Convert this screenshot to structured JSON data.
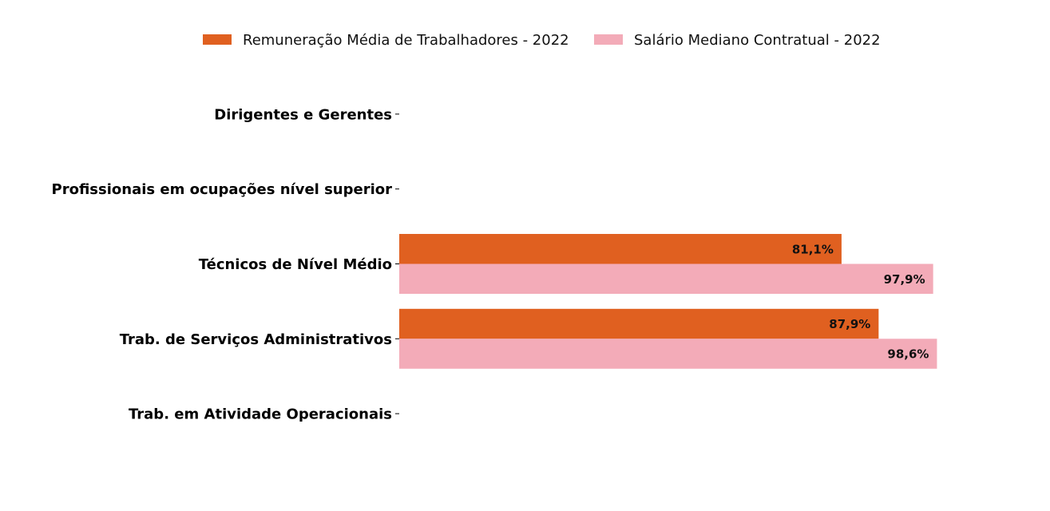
{
  "chart_data": {
    "type": "bar",
    "orientation": "horizontal",
    "categories": [
      "Dirigentes e Gerentes",
      "Profissionais em ocupações nível superior",
      "Técnicos de Nível Médio",
      "Trab. de Serviços Administrativos",
      "Trab. em Atividade Operacionais"
    ],
    "series": [
      {
        "name": "Remuneração Média de Trabalhadores - 2022",
        "color": "#e06020",
        "values": [
          null,
          null,
          81.1,
          87.9,
          null
        ],
        "labels": [
          "",
          "",
          "81,1%",
          "87,9%",
          ""
        ]
      },
      {
        "name": "Salário Mediano Contratual - 2022",
        "color": "#f3abb8",
        "values": [
          null,
          null,
          97.9,
          98.6,
          null
        ],
        "labels": [
          "",
          "",
          "97,9%",
          "98,6%",
          ""
        ]
      }
    ],
    "xlim": [
      0,
      100
    ],
    "legend_position": "top-center",
    "grid": false
  }
}
